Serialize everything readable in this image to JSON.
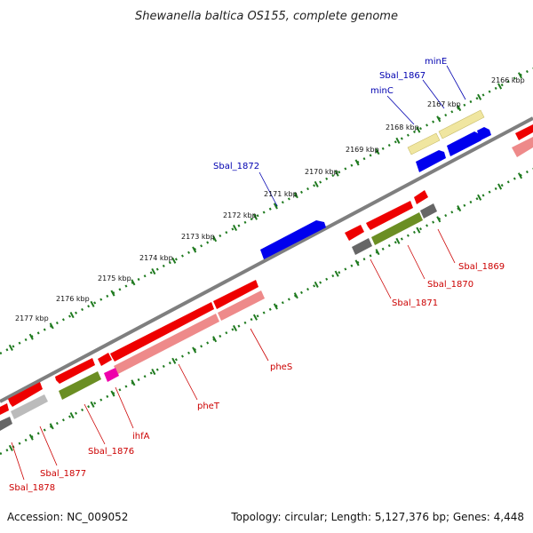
{
  "title": "Shewanella baltica OS155, complete genome",
  "footer": {
    "accession": "Accession: NC_009052",
    "topology": "Topology: circular; Length: 5,127,376 bp; Genes: 4,448"
  },
  "colors": {
    "backbone": "#7f7f7f",
    "tick": "#1f7a1f",
    "label_plus": "#0000b0",
    "label_minus": "#cc0000",
    "cds_plus": "#0000ee",
    "cds_minus": "#ee0000",
    "cds_pale_minus": "#ee8a8a",
    "cog_olive": "#6b8e23",
    "cog_yellow": "#f0e6a0",
    "cog_grey": "#666666",
    "cog_lightgrey": "#bbbbbb",
    "cog_magenta": "#ee00aa"
  },
  "ticks": [
    {
      "label": "2166 kbp"
    },
    {
      "label": "2167 kbp"
    },
    {
      "label": "2168 kbp"
    },
    {
      "label": "2169 kbp"
    },
    {
      "label": "2170 kbp"
    },
    {
      "label": "2171 kbp"
    },
    {
      "label": "2172 kbp"
    },
    {
      "label": "2173 kbp"
    },
    {
      "label": "2174 kbp"
    },
    {
      "label": "2175 kbp"
    },
    {
      "label": "2176 kbp"
    },
    {
      "label": "2177 kbp"
    }
  ],
  "gene_labels": [
    {
      "name": "minE",
      "strand": "plus"
    },
    {
      "name": "Sbal_1867",
      "strand": "plus"
    },
    {
      "name": "minC",
      "strand": "plus"
    },
    {
      "name": "Sbal_1872",
      "strand": "plus"
    },
    {
      "name": "Sbal_1869",
      "strand": "minus"
    },
    {
      "name": "Sbal_1870",
      "strand": "minus"
    },
    {
      "name": "Sbal_1871",
      "strand": "minus"
    },
    {
      "name": "pheS",
      "strand": "minus"
    },
    {
      "name": "pheT",
      "strand": "minus"
    },
    {
      "name": "ihfA",
      "strand": "minus"
    },
    {
      "name": "Sbal_1876",
      "strand": "minus"
    },
    {
      "name": "Sbal_1877",
      "strand": "minus"
    },
    {
      "name": "Sbal_1878",
      "strand": "minus"
    }
  ]
}
